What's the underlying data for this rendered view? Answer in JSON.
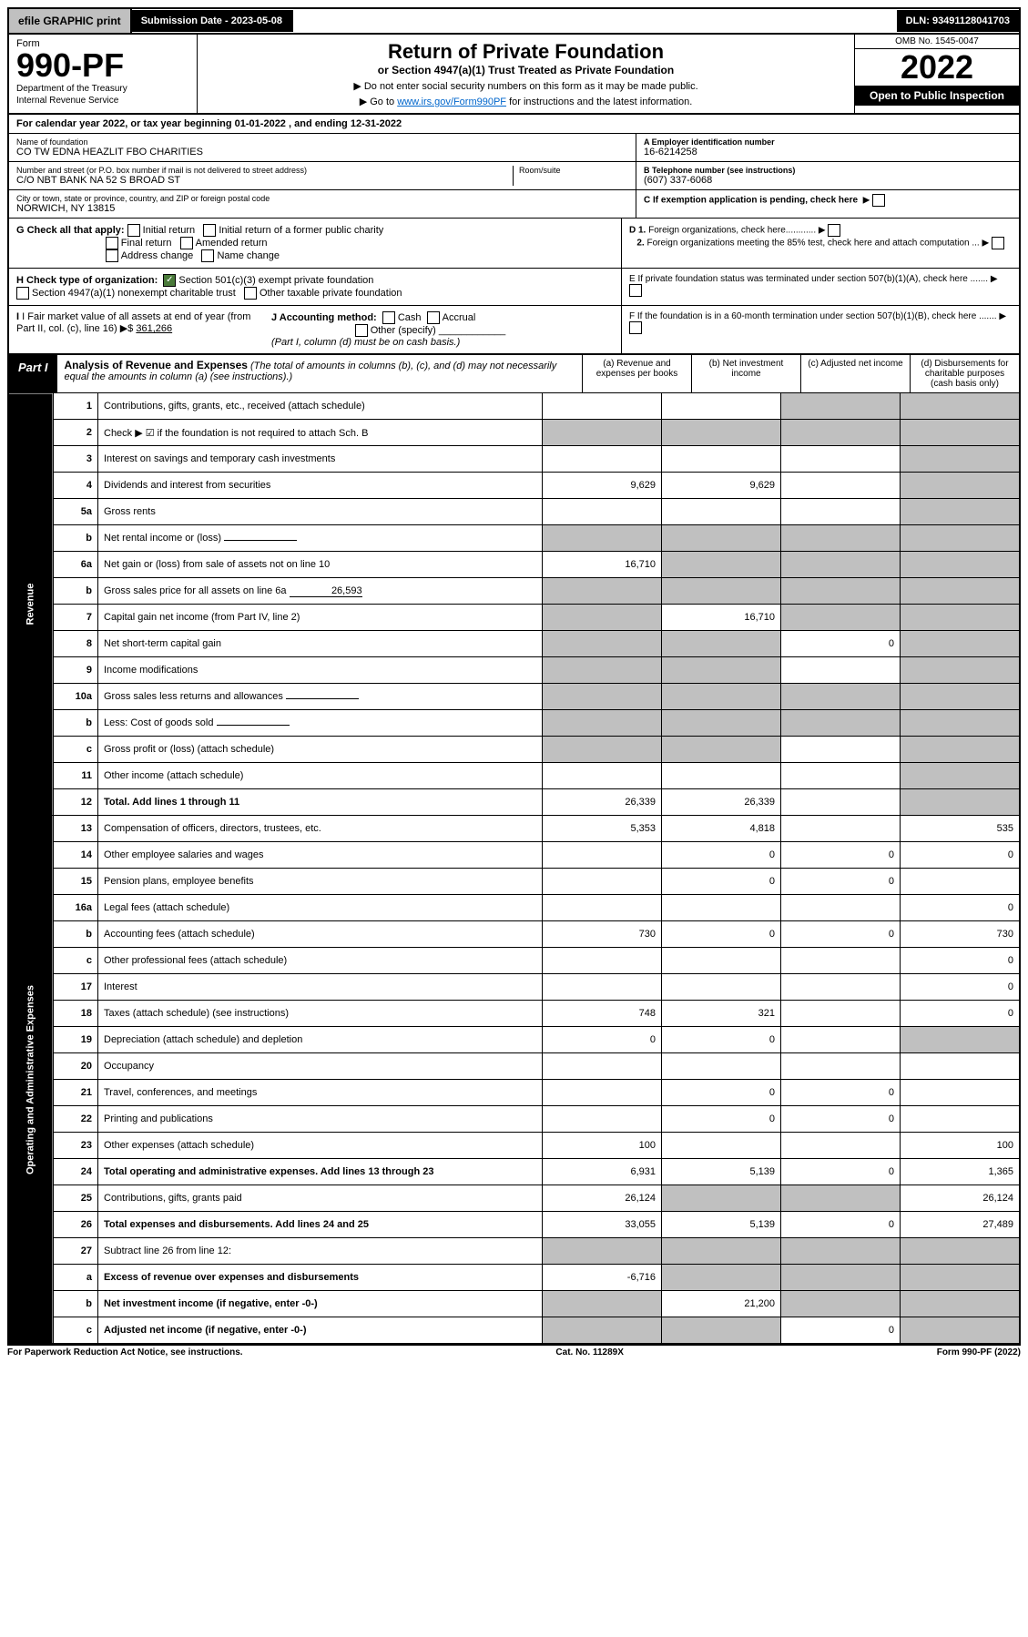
{
  "top_bar": {
    "efile": "efile GRAPHIC print",
    "submission": "Submission Date - 2023-05-08",
    "dln": "DLN: 93491128041703"
  },
  "header": {
    "form_label": "Form",
    "form_number": "990-PF",
    "dept1": "Department of the Treasury",
    "dept2": "Internal Revenue Service",
    "title": "Return of Private Foundation",
    "subtitle": "or Section 4947(a)(1) Trust Treated as Private Foundation",
    "note1": "▶ Do not enter social security numbers on this form as it may be made public.",
    "note2_pre": "▶ Go to ",
    "note2_link": "www.irs.gov/Form990PF",
    "note2_post": " for instructions and the latest information.",
    "omb": "OMB No. 1545-0047",
    "year": "2022",
    "inspect": "Open to Public Inspection"
  },
  "cal_year": {
    "pre": "For calendar year 2022, or tax year beginning ",
    "begin": "01-01-2022",
    "mid": " , and ending ",
    "end": "12-31-2022"
  },
  "info": {
    "name_label": "Name of foundation",
    "name": "CO TW EDNA HEAZLIT FBO CHARITIES",
    "addr_label": "Number and street (or P.O. box number if mail is not delivered to street address)",
    "addr": "C/O NBT BANK NA 52 S BROAD ST",
    "room_label": "Room/suite",
    "city_label": "City or town, state or province, country, and ZIP or foreign postal code",
    "city": "NORWICH, NY  13815",
    "ein_label": "A Employer identification number",
    "ein": "16-6214258",
    "tel_label": "B Telephone number (see instructions)",
    "tel": "(607) 337-6068",
    "c_label": "C If exemption application is pending, check here",
    "d1": "D 1. Foreign organizations, check here............",
    "d2": "2. Foreign organizations meeting the 85% test, check here and attach computation ...",
    "e": "E  If private foundation status was terminated under section 507(b)(1)(A), check here .......",
    "f": "F  If the foundation is in a 60-month termination under section 507(b)(1)(B), check here .......",
    "g_label": "G Check all that apply:",
    "g_opts": [
      "Initial return",
      "Initial return of a former public charity",
      "Final return",
      "Amended return",
      "Address change",
      "Name change"
    ],
    "h_label": "H Check type of organization:",
    "h1": "Section 501(c)(3) exempt private foundation",
    "h2": "Section 4947(a)(1) nonexempt charitable trust",
    "h3": "Other taxable private foundation",
    "i_label": "I Fair market value of all assets at end of year (from Part II, col. (c), line 16)",
    "i_val": "361,266",
    "j_label": "J Accounting method:",
    "j1": "Cash",
    "j2": "Accrual",
    "j3": "Other (specify)",
    "j_note": "(Part I, column (d) must be on cash basis.)"
  },
  "part1": {
    "label": "Part I",
    "title": "Analysis of Revenue and Expenses",
    "note": "(The total of amounts in columns (b), (c), and (d) may not necessarily equal the amounts in column (a) (see instructions).)",
    "col_a": "(a) Revenue and expenses per books",
    "col_b": "(b) Net investment income",
    "col_c": "(c) Adjusted net income",
    "col_d": "(d) Disbursements for charitable purposes (cash basis only)"
  },
  "vlabels": {
    "rev": "Revenue",
    "exp": "Operating and Administrative Expenses"
  },
  "rows": [
    {
      "n": "1",
      "d": "Contributions, gifts, grants, etc., received (attach schedule)",
      "a": "",
      "b": "",
      "c": "s",
      "dd": "s"
    },
    {
      "n": "2",
      "d": "Check ▶ ☑ if the foundation is not required to attach Sch. B",
      "a": "s",
      "b": "s",
      "c": "s",
      "dd": "s",
      "checked": true
    },
    {
      "n": "3",
      "d": "Interest on savings and temporary cash investments",
      "a": "",
      "b": "",
      "c": "",
      "dd": "s"
    },
    {
      "n": "4",
      "d": "Dividends and interest from securities",
      "a": "9,629",
      "b": "9,629",
      "c": "",
      "dd": "s"
    },
    {
      "n": "5a",
      "d": "Gross rents",
      "a": "",
      "b": "",
      "c": "",
      "dd": "s"
    },
    {
      "n": "b",
      "d": "Net rental income or (loss)",
      "a": "s",
      "b": "s",
      "c": "s",
      "dd": "s",
      "inline": ""
    },
    {
      "n": "6a",
      "d": "Net gain or (loss) from sale of assets not on line 10",
      "a": "16,710",
      "b": "s",
      "c": "s",
      "dd": "s"
    },
    {
      "n": "b",
      "d": "Gross sales price for all assets on line 6a",
      "a": "s",
      "b": "s",
      "c": "s",
      "dd": "s",
      "inline": "26,593"
    },
    {
      "n": "7",
      "d": "Capital gain net income (from Part IV, line 2)",
      "a": "s",
      "b": "16,710",
      "c": "s",
      "dd": "s"
    },
    {
      "n": "8",
      "d": "Net short-term capital gain",
      "a": "s",
      "b": "s",
      "c": "0",
      "dd": "s"
    },
    {
      "n": "9",
      "d": "Income modifications",
      "a": "s",
      "b": "s",
      "c": "",
      "dd": "s"
    },
    {
      "n": "10a",
      "d": "Gross sales less returns and allowances",
      "a": "s",
      "b": "s",
      "c": "s",
      "dd": "s",
      "inline": ""
    },
    {
      "n": "b",
      "d": "Less: Cost of goods sold",
      "a": "s",
      "b": "s",
      "c": "s",
      "dd": "s",
      "inline": ""
    },
    {
      "n": "c",
      "d": "Gross profit or (loss) (attach schedule)",
      "a": "s",
      "b": "s",
      "c": "",
      "dd": "s"
    },
    {
      "n": "11",
      "d": "Other income (attach schedule)",
      "a": "",
      "b": "",
      "c": "",
      "dd": "s"
    },
    {
      "n": "12",
      "d": "Total. Add lines 1 through 11",
      "a": "26,339",
      "b": "26,339",
      "c": "",
      "dd": "s",
      "bold": true
    },
    {
      "n": "13",
      "d": "Compensation of officers, directors, trustees, etc.",
      "a": "5,353",
      "b": "4,818",
      "c": "",
      "dd": "535"
    },
    {
      "n": "14",
      "d": "Other employee salaries and wages",
      "a": "",
      "b": "0",
      "c": "0",
      "dd": "0"
    },
    {
      "n": "15",
      "d": "Pension plans, employee benefits",
      "a": "",
      "b": "0",
      "c": "0",
      "dd": ""
    },
    {
      "n": "16a",
      "d": "Legal fees (attach schedule)",
      "a": "",
      "b": "",
      "c": "",
      "dd": "0"
    },
    {
      "n": "b",
      "d": "Accounting fees (attach schedule)",
      "a": "730",
      "b": "0",
      "c": "0",
      "dd": "730"
    },
    {
      "n": "c",
      "d": "Other professional fees (attach schedule)",
      "a": "",
      "b": "",
      "c": "",
      "dd": "0"
    },
    {
      "n": "17",
      "d": "Interest",
      "a": "",
      "b": "",
      "c": "",
      "dd": "0"
    },
    {
      "n": "18",
      "d": "Taxes (attach schedule) (see instructions)",
      "a": "748",
      "b": "321",
      "c": "",
      "dd": "0"
    },
    {
      "n": "19",
      "d": "Depreciation (attach schedule) and depletion",
      "a": "0",
      "b": "0",
      "c": "",
      "dd": "s"
    },
    {
      "n": "20",
      "d": "Occupancy",
      "a": "",
      "b": "",
      "c": "",
      "dd": ""
    },
    {
      "n": "21",
      "d": "Travel, conferences, and meetings",
      "a": "",
      "b": "0",
      "c": "0",
      "dd": ""
    },
    {
      "n": "22",
      "d": "Printing and publications",
      "a": "",
      "b": "0",
      "c": "0",
      "dd": ""
    },
    {
      "n": "23",
      "d": "Other expenses (attach schedule)",
      "a": "100",
      "b": "",
      "c": "",
      "dd": "100"
    },
    {
      "n": "24",
      "d": "Total operating and administrative expenses. Add lines 13 through 23",
      "a": "6,931",
      "b": "5,139",
      "c": "0",
      "dd": "1,365",
      "bold": true
    },
    {
      "n": "25",
      "d": "Contributions, gifts, grants paid",
      "a": "26,124",
      "b": "s",
      "c": "s",
      "dd": "26,124"
    },
    {
      "n": "26",
      "d": "Total expenses and disbursements. Add lines 24 and 25",
      "a": "33,055",
      "b": "5,139",
      "c": "0",
      "dd": "27,489",
      "bold": true
    },
    {
      "n": "27",
      "d": "Subtract line 26 from line 12:",
      "a": "s",
      "b": "s",
      "c": "s",
      "dd": "s"
    },
    {
      "n": "a",
      "d": "Excess of revenue over expenses and disbursements",
      "a": "-6,716",
      "b": "s",
      "c": "s",
      "dd": "s",
      "bold": true
    },
    {
      "n": "b",
      "d": "Net investment income (if negative, enter -0-)",
      "a": "s",
      "b": "21,200",
      "c": "s",
      "dd": "s",
      "bold": true
    },
    {
      "n": "c",
      "d": "Adjusted net income (if negative, enter -0-)",
      "a": "s",
      "b": "s",
      "c": "0",
      "dd": "s",
      "bold": true
    }
  ],
  "footer": {
    "left": "For Paperwork Reduction Act Notice, see instructions.",
    "mid": "Cat. No. 11289X",
    "right": "Form 990-PF (2022)"
  }
}
